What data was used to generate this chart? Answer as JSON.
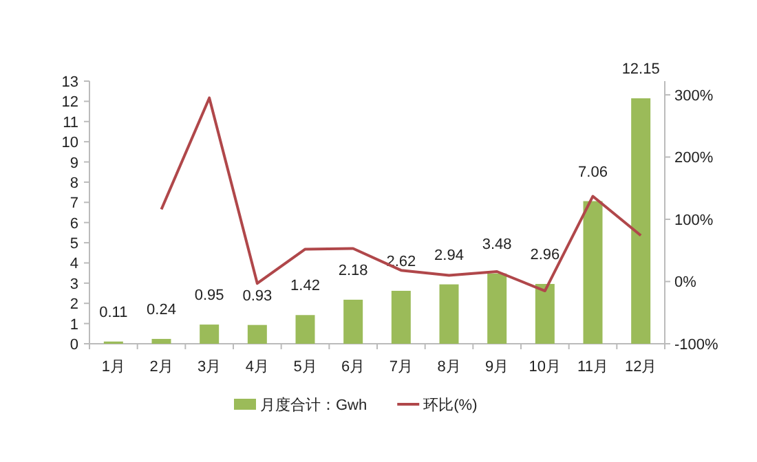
{
  "chart_data": {
    "type": "bar",
    "categories": [
      "1月",
      "2月",
      "3月",
      "4月",
      "5月",
      "6月",
      "7月",
      "8月",
      "9月",
      "10月",
      "11月",
      "12月"
    ],
    "series": [
      {
        "name": "月度合计：Gwh",
        "color": "#9bbb59",
        "values": [
          0.11,
          0.24,
          0.95,
          0.93,
          1.42,
          2.18,
          2.62,
          2.94,
          3.48,
          2.96,
          7.06,
          12.15
        ],
        "data_labels": true
      },
      {
        "name": "环比(%)",
        "type": "line",
        "axis": "y2",
        "color": "#b0474a",
        "values": [
          null,
          116,
          295,
          -3,
          52,
          53,
          18,
          10,
          16,
          -15,
          137,
          74
        ]
      }
    ],
    "ylim": [
      0,
      13
    ],
    "yticks": [
      0,
      1,
      2,
      3,
      4,
      5,
      6,
      7,
      8,
      9,
      10,
      11,
      12,
      13
    ],
    "y2lim": [
      -100,
      322
    ],
    "y2ticks": [
      {
        "value": -100,
        "label": "-100%"
      },
      {
        "value": 0,
        "label": "0%"
      },
      {
        "value": 100,
        "label": "100%"
      },
      {
        "value": 200,
        "label": "200%"
      },
      {
        "value": 300,
        "label": "300%"
      }
    ],
    "legend": "bottom"
  }
}
